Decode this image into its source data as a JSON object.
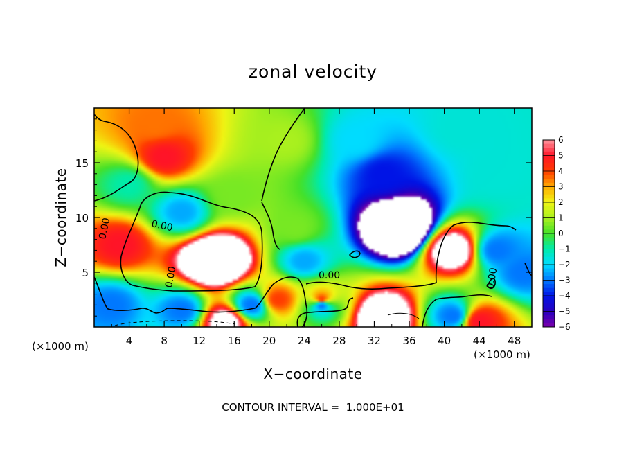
{
  "chart_data": {
    "type": "heatmap",
    "title": "zonal velocity",
    "xlabel": "X−coordinate",
    "ylabel": "Z−coordinate",
    "x_unit_left": "(×1000 m)",
    "x_unit_right": "(×1000 m)",
    "xlim": [
      0,
      50
    ],
    "ylim": [
      0,
      20
    ],
    "x_ticks": [
      4,
      8,
      12,
      16,
      20,
      24,
      28,
      32,
      36,
      40,
      44,
      48
    ],
    "y_ticks": [
      5,
      10,
      15
    ],
    "colorbar": {
      "min": -6,
      "max": 6,
      "ticks": [
        "6",
        "5",
        "4",
        "3",
        "2",
        "1",
        "0",
        "−1",
        "−2",
        "−3",
        "−4",
        "−5",
        "−6"
      ],
      "saturated_color_positive": "#ffffff",
      "saturated_color_negative": "#ffffff"
    },
    "contour_labels": [
      "0.00",
      "0.00",
      "0.00",
      "0.00",
      "0.00"
    ],
    "field_features": [
      {
        "x": 35,
        "z": 9,
        "u": -13
      },
      {
        "x": 33,
        "z": 14,
        "u": -4
      },
      {
        "x": 30,
        "z": 17,
        "u": -2
      },
      {
        "x": 42,
        "z": 18,
        "u": -1.5
      },
      {
        "x": 46,
        "z": 14,
        "u": -1.5
      },
      {
        "x": 14,
        "z": 6,
        "u": 13
      },
      {
        "x": 41,
        "z": 7,
        "u": 8
      },
      {
        "x": 8,
        "z": 15.5,
        "u": 5
      },
      {
        "x": 7,
        "z": 18.5,
        "u": 3.5
      },
      {
        "x": 3,
        "z": 7.5,
        "u": 5
      },
      {
        "x": 26,
        "z": 2.5,
        "u": 4
      },
      {
        "x": 21,
        "z": 2.5,
        "u": 4
      },
      {
        "x": 33,
        "z": 1,
        "u": 9
      },
      {
        "x": 15,
        "z": 0.5,
        "u": 7
      },
      {
        "x": 44,
        "z": 0.5,
        "u": 5
      },
      {
        "x": 26,
        "z": 2,
        "u": -3
      },
      {
        "x": 10,
        "z": 1.5,
        "u": -3
      },
      {
        "x": 2,
        "z": 2,
        "u": -3
      },
      {
        "x": 18,
        "z": 2,
        "u": -3
      },
      {
        "x": 10,
        "z": 10.5,
        "u": -2.5
      },
      {
        "x": 46,
        "z": 7,
        "u": -3
      },
      {
        "x": 49,
        "z": 5,
        "u": -3
      },
      {
        "x": 41,
        "z": 1,
        "u": -3
      },
      {
        "x": 24,
        "z": 6,
        "u": -2.5
      },
      {
        "x": 4,
        "z": 13,
        "u": -1
      },
      {
        "x": 23,
        "z": 9,
        "u": 0.5
      },
      {
        "x": 16,
        "z": 12,
        "u": 0.5
      },
      {
        "x": 22,
        "z": 17,
        "u": 1
      }
    ]
  },
  "footer": "CONTOUR INTERVAL =  1.000E+01"
}
